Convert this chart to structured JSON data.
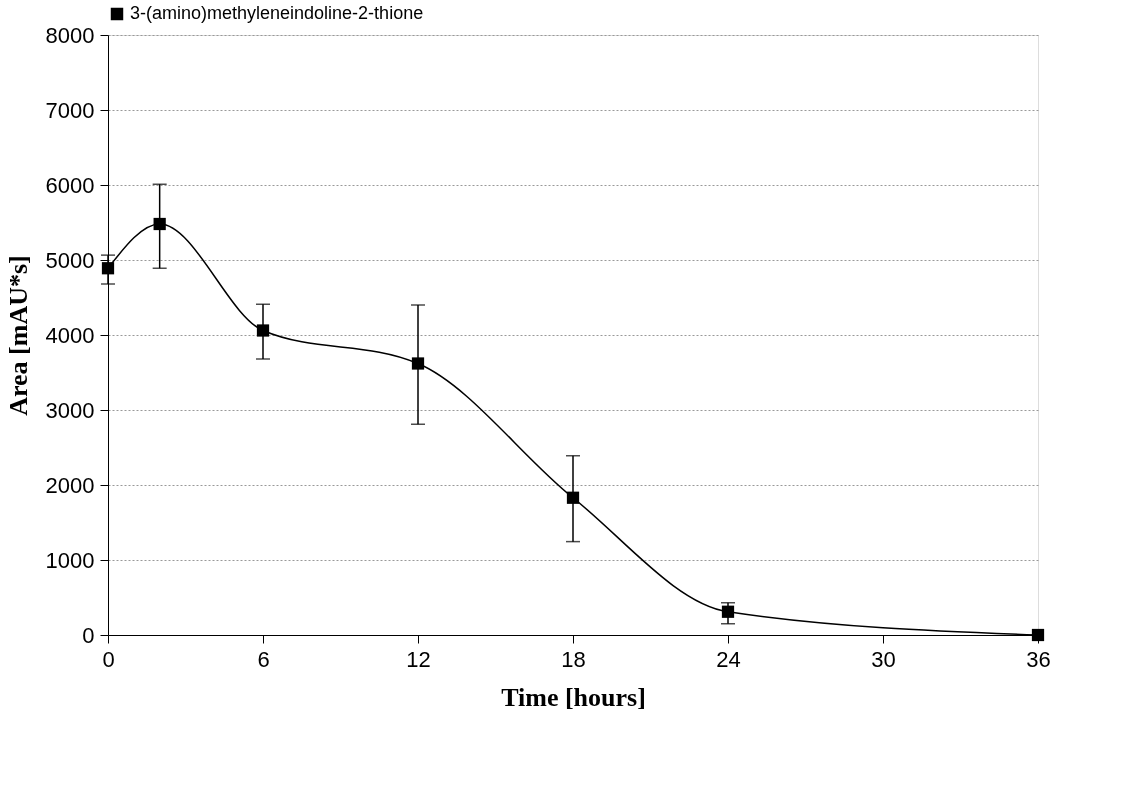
{
  "chart_data": {
    "type": "line",
    "xlabel": "Time [hours]",
    "ylabel": "Area [mAU*s]",
    "x": [
      0,
      2,
      6,
      12,
      18,
      24,
      36
    ],
    "series": [
      {
        "name": "3-(amino)methyleneindoline-2-thione",
        "color": "#000000",
        "values": [
          4890,
          5480,
          4060,
          3620,
          1830,
          310,
          0
        ],
        "errors": [
          [
            4680,
            5065
          ],
          [
            4890,
            6010
          ],
          [
            3680,
            4410
          ],
          [
            2810,
            4400
          ],
          [
            1245,
            2390
          ],
          [
            150,
            430
          ],
          null
        ]
      }
    ],
    "xlim": [
      0,
      36
    ],
    "xticks": [
      0,
      6,
      12,
      18,
      24,
      30,
      36
    ],
    "ylim": [
      0,
      8000
    ],
    "yticks": [
      0,
      1000,
      2000,
      3000,
      4000,
      5000,
      6000,
      7000,
      8000
    ],
    "grid": "y",
    "legend": "top",
    "marker": "square",
    "line_style": "solid"
  }
}
